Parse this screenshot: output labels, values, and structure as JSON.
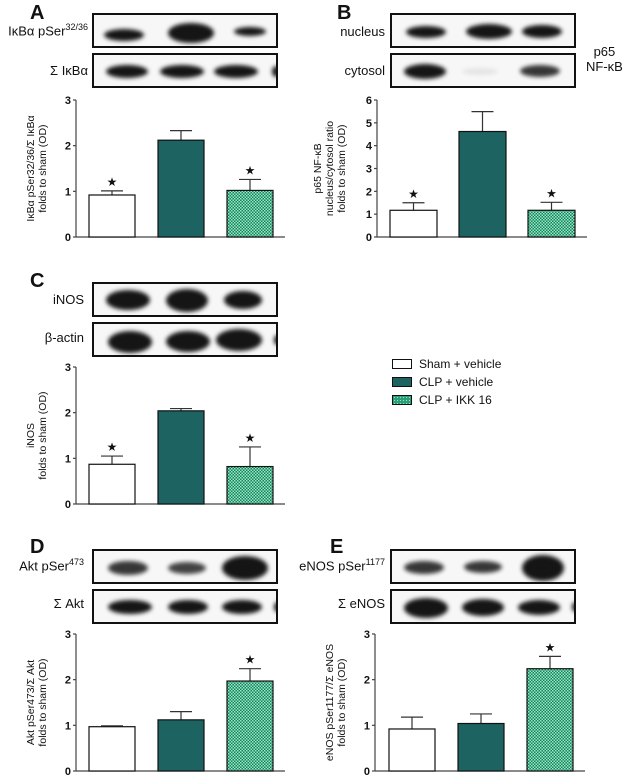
{
  "colors": {
    "sham": "#ffffff",
    "clp": "#1c6361",
    "ikk": "#2e9e78",
    "ikk_dot": "#8ef0c2",
    "axis": "#555555"
  },
  "legend": {
    "items": [
      {
        "label": "Sham + vehicle",
        "key": "sham"
      },
      {
        "label": "CLP + vehicle",
        "key": "clp"
      },
      {
        "label": "CLP + IKK 16",
        "key": "ikk"
      }
    ]
  },
  "panels": {
    "A": {
      "letter": "A",
      "blot_top": "IκBα pSer",
      "blot_top_sup": "32/36",
      "blot_bottom": "Σ IκBα"
    },
    "B": {
      "letter": "B",
      "blot_top": "nucleus",
      "blot_bottom": "cytosol",
      "side_label_1": "p65",
      "side_label_2": "NF-κB"
    },
    "C": {
      "letter": "C",
      "blot_top": "iNOS",
      "blot_bottom": "β-actin"
    },
    "D": {
      "letter": "D",
      "blot_top": "Akt pSer",
      "blot_top_sup": "473",
      "blot_bottom": "Σ Akt"
    },
    "E": {
      "letter": "E",
      "blot_top": "eNOS pSer",
      "blot_top_sup": "1177",
      "blot_bottom": "Σ eNOS"
    }
  },
  "chart_data": [
    {
      "panel": "A",
      "type": "bar",
      "categories": [
        "Sham + vehicle",
        "CLP + vehicle",
        "CLP + IKK 16"
      ],
      "values": [
        0.92,
        2.12,
        1.02
      ],
      "errors": [
        0.09,
        0.21,
        0.24
      ],
      "significant": [
        true,
        false,
        true
      ],
      "ylabel_1": "IκBα pSer32/36/Σ IκBα",
      "ylabel_2": "folds to sham (OD)",
      "ylim": [
        0,
        3
      ],
      "yticks": [
        0,
        1,
        2,
        3
      ],
      "title": "",
      "xlabel": ""
    },
    {
      "panel": "B",
      "type": "bar",
      "categories": [
        "Sham + vehicle",
        "CLP + vehicle",
        "CLP + IKK 16"
      ],
      "values": [
        1.17,
        4.62,
        1.17
      ],
      "errors": [
        0.33,
        0.87,
        0.35
      ],
      "significant": [
        true,
        false,
        true
      ],
      "ylabel_0": "p65 NF-κB",
      "ylabel_1": "nucleus/cytosol ratio",
      "ylabel_2": "folds to sham (OD)",
      "ylim": [
        0,
        6
      ],
      "yticks": [
        0,
        1,
        2,
        3,
        4,
        5,
        6
      ],
      "title": "",
      "xlabel": ""
    },
    {
      "panel": "C",
      "type": "bar",
      "categories": [
        "Sham + vehicle",
        "CLP + vehicle",
        "CLP + IKK 16"
      ],
      "values": [
        0.87,
        2.04,
        0.82
      ],
      "errors": [
        0.18,
        0.05,
        0.43
      ],
      "significant": [
        true,
        false,
        true
      ],
      "ylabel_1": "iNOS",
      "ylabel_2": "folds to sham (OD)",
      "ylim": [
        0,
        3
      ],
      "yticks": [
        0,
        1,
        2,
        3
      ],
      "title": "",
      "xlabel": ""
    },
    {
      "panel": "D",
      "type": "bar",
      "categories": [
        "Sham + vehicle",
        "CLP + vehicle",
        "CLP + IKK 16"
      ],
      "values": [
        0.97,
        1.12,
        1.97
      ],
      "errors": [
        0.02,
        0.18,
        0.27
      ],
      "significant": [
        false,
        false,
        true
      ],
      "ylabel_1": "Akt pSer473/Σ Akt",
      "ylabel_2": "folds to sham (OD)",
      "ylim": [
        0,
        3
      ],
      "yticks": [
        0,
        1,
        2,
        3
      ],
      "title": "",
      "xlabel": ""
    },
    {
      "panel": "E",
      "type": "bar",
      "categories": [
        "Sham + vehicle",
        "CLP + vehicle",
        "CLP + IKK 16"
      ],
      "values": [
        0.92,
        1.04,
        2.24
      ],
      "errors": [
        0.26,
        0.21,
        0.27
      ],
      "significant": [
        false,
        false,
        true
      ],
      "ylabel_1": "eNOS pSer1177/Σ eNOS",
      "ylabel_2": "folds to sham (OD)",
      "ylim": [
        0,
        3
      ],
      "yticks": [
        0,
        1,
        2,
        3
      ],
      "title": "",
      "xlabel": ""
    }
  ]
}
